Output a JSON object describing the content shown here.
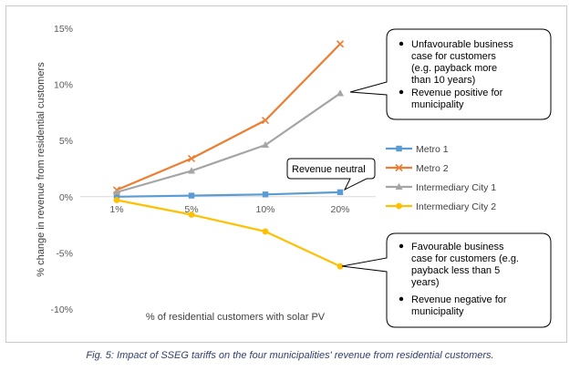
{
  "chart_data": {
    "type": "line",
    "title": "",
    "xlabel": "% of residential customers with solar PV",
    "ylabel": "% change in revenue from residential customers",
    "categories": [
      "1%",
      "5%",
      "10%",
      "20%"
    ],
    "yticks": [
      "15%",
      "10%",
      "5%",
      "0%",
      "-5%",
      "-10%"
    ],
    "ylim": [
      -10,
      15
    ],
    "grid": false,
    "legend_position": "right",
    "series": [
      {
        "name": "Metro 1",
        "values": [
          0.0,
          0.1,
          0.2,
          0.4
        ],
        "color": "#5b9bd5",
        "marker": "square"
      },
      {
        "name": "Metro 2",
        "values": [
          0.6,
          3.4,
          6.8,
          13.6
        ],
        "color": "#ed7d31",
        "marker": "x"
      },
      {
        "name": "Intermediary City 1",
        "values": [
          0.4,
          2.3,
          4.6,
          9.2
        ],
        "color": "#a5a5a5",
        "marker": "triangle"
      },
      {
        "name": "Intermediary City 2",
        "values": [
          -0.3,
          -1.6,
          -3.1,
          -6.2
        ],
        "color": "#ffc000",
        "marker": "circle"
      }
    ],
    "annotations": {
      "top_callout": [
        "Unfavourable business case for customers (e.g. payback more than 10 years)",
        "Revenue positive for municipality"
      ],
      "neutral_label": "Revenue neutral",
      "bottom_callout": [
        "Favourable business case for customers (e.g. payback less than 5 years)",
        "Revenue negative for municipality"
      ]
    }
  },
  "caption": "Fig. 5: Impact of SSEG tariffs on the four municipalities' revenue from residential customers."
}
